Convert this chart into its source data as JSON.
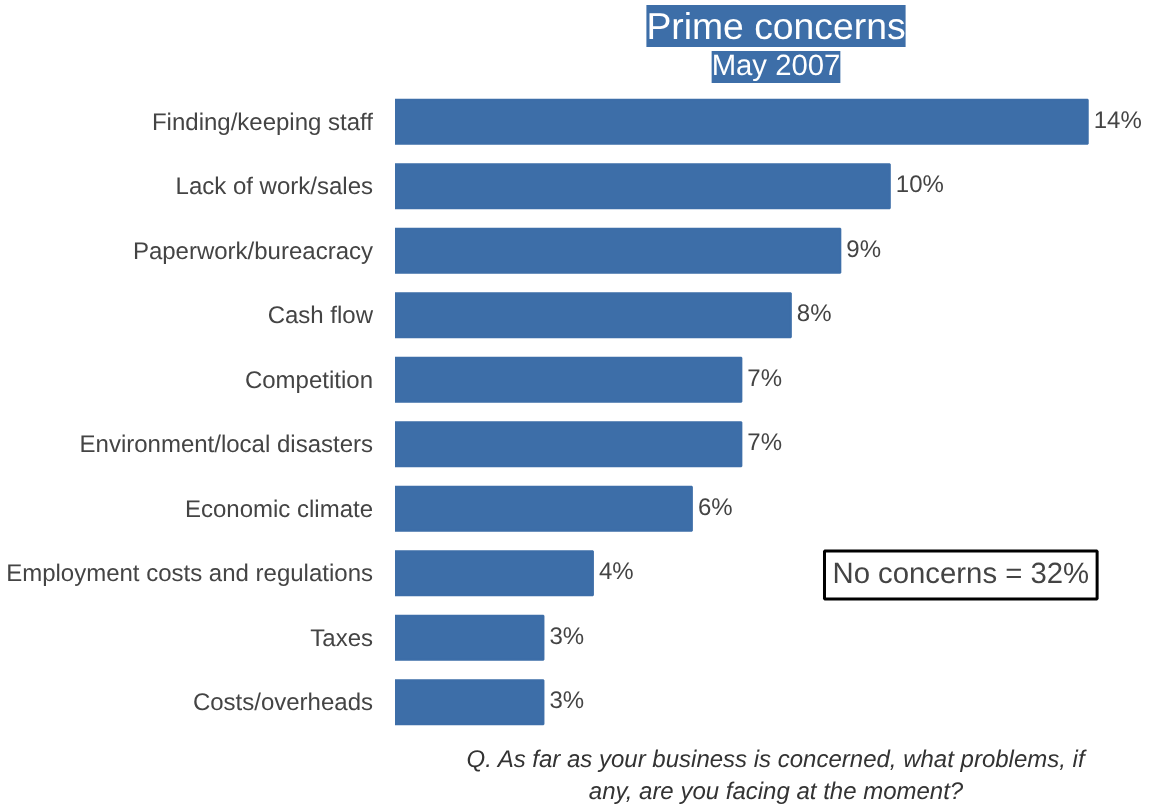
{
  "chart_data": {
    "type": "bar",
    "orientation": "horizontal",
    "title": "Prime concerns",
    "subtitle": "May 2007",
    "categories": [
      "Finding/keeping staff",
      "Lack of work/sales",
      "Paperwork/bureacracy",
      "Cash flow",
      "Competition",
      "Environment/local disasters",
      "Economic climate",
      "Employment costs and regulations",
      "Taxes",
      "Costs/overheads"
    ],
    "values": [
      14,
      10,
      9,
      8,
      7,
      7,
      6,
      4,
      3,
      3
    ],
    "value_labels": [
      "14%",
      "10%",
      "9%",
      "8%",
      "7%",
      "7%",
      "6%",
      "4%",
      "3%",
      "3%"
    ],
    "color": "#3d6ea8",
    "annotations": [
      "No concerns = 32%",
      "Q. As far as your business is concerned, what problems, if any, are you facing at the moment?"
    ],
    "grid": false
  }
}
